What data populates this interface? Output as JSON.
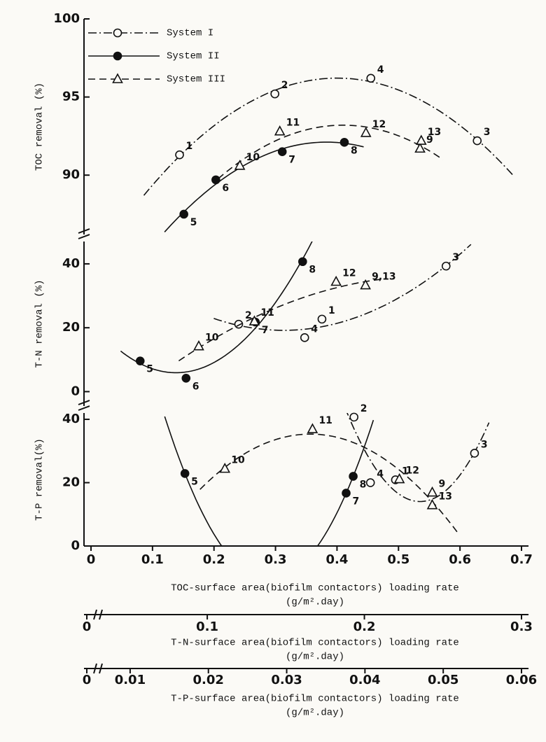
{
  "chart_data": [
    {
      "type": "scatter",
      "ylabel": "TOC removal (%)",
      "xlabel": [
        "TOC-surface area(biofilm contactors) loading rate",
        "(g/m².day)"
      ],
      "xlim": [
        0,
        0.7
      ],
      "xticks": [
        0,
        0.1,
        0.2,
        0.3,
        0.4,
        0.5,
        0.6,
        0.7
      ],
      "ylim": [
        86.2,
        100
      ],
      "yticks": [
        90,
        95,
        100
      ],
      "legend": "upper left",
      "series": [
        {
          "name": "System I",
          "color": "#111111",
          "marker": "circle-open",
          "dash": "dashdot",
          "x": [
            0.144,
            0.299,
            0.628,
            0.455
          ],
          "values": [
            91.3,
            95.2,
            92.2,
            96.2
          ],
          "point_labels": [
            "1",
            "2",
            "3",
            "4"
          ]
        },
        {
          "name": "System II",
          "color": "#111111",
          "marker": "circle-filled",
          "dash": "solid",
          "x": [
            0.151,
            0.203,
            0.311,
            0.412
          ],
          "values": [
            87.5,
            89.7,
            91.5,
            92.1
          ],
          "point_labels": [
            "5",
            "6",
            "7",
            "8"
          ]
        },
        {
          "name": "System III",
          "color": "#111111",
          "marker": "triangle-open",
          "dash": "dashed",
          "x": [
            0.535,
            0.242,
            0.307,
            0.447,
            0.537
          ],
          "values": [
            91.7,
            90.6,
            92.8,
            92.7,
            92.2
          ],
          "point_labels": [
            "9",
            "10",
            "11",
            "12",
            "13"
          ]
        }
      ]
    },
    {
      "type": "scatter",
      "ylabel": "T-N removal (%)",
      "xlabel": [
        "T-N-surface area(biofilm contactors) loading rate",
        "(g/m².day)"
      ],
      "xlim": [
        0.026,
        0.3
      ],
      "xticks": [
        0,
        0.1,
        0.2,
        0.3
      ],
      "x_axis_break": true,
      "ylim": [
        -4.5,
        47
      ],
      "yticks": [
        0,
        20,
        40
      ],
      "series": [
        {
          "color": "#111111",
          "marker": "circle-open",
          "dash": "dashdot",
          "x": [
            0.173,
            0.12,
            0.252,
            0.162
          ],
          "values": [
            22.7,
            21.1,
            39.3,
            16.9
          ],
          "point_labels": [
            "1",
            "2",
            "3",
            "4"
          ]
        },
        {
          "color": "#111111",
          "marker": "circle-filled",
          "dash": "solid",
          "x": [
            0.0573,
            0.0865,
            0.1306,
            0.1607
          ],
          "values": [
            9.6,
            4.2,
            21.8,
            40.7
          ],
          "point_labels": [
            "5",
            "6",
            "7",
            "8"
          ]
        },
        {
          "color": "#111111",
          "marker": "triangle-open",
          "dash": "dashed",
          "x": [
            0.0946,
            0.13,
            0.182,
            0.2007
          ],
          "values": [
            14.2,
            22.0,
            34.4,
            33.3
          ],
          "point_labels": [
            "10",
            "11",
            "12",
            "9,13"
          ]
        }
      ]
    },
    {
      "type": "scatter",
      "ylabel": "T-P removal(%)",
      "xlabel": [
        "T-P-surface area(biofilm contactors) loading rate",
        "(g/m².day)"
      ],
      "xlim": [
        0.005,
        0.06
      ],
      "xticks": [
        0,
        0.01,
        0.02,
        0.03,
        0.04,
        0.05,
        0.06
      ],
      "x_axis_break": true,
      "ylim": [
        0,
        42
      ],
      "yticks": [
        0,
        20,
        40
      ],
      "series": [
        {
          "color": "#111111",
          "marker": "circle-open",
          "dash": "dashdot",
          "x": [
            0.0439,
            0.0386,
            0.054,
            0.0407
          ],
          "values": [
            20.9,
            40.7,
            29.3,
            20.0
          ],
          "point_labels": [
            "1",
            "2",
            "3",
            "4"
          ]
        },
        {
          "color": "#111111",
          "marker": "circle-filled",
          "dash": "solid",
          "x": [
            0.017,
            0.0376,
            0.0385
          ],
          "values": [
            22.9,
            16.7,
            22.0
          ],
          "point_labels": [
            "5",
            "7",
            "8"
          ]
        },
        {
          "color": "#111111",
          "marker": "triangle-open",
          "dash": "dashed",
          "x": [
            0.0486,
            0.0221,
            0.0333,
            0.0444,
            0.0486
          ],
          "values": [
            16.9,
            24.4,
            36.9,
            21.1,
            12.9
          ],
          "point_labels": [
            "9",
            "10",
            "11",
            "12",
            "13"
          ]
        }
      ]
    }
  ]
}
